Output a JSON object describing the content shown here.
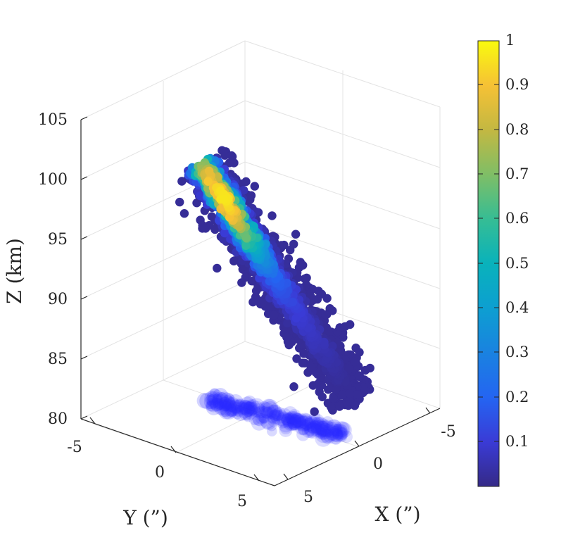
{
  "chart_data": {
    "type": "scatter",
    "title": "",
    "xlabel": "X (”)",
    "ylabel": "Y (”)",
    "zlabel": "Z (km)",
    "x_ticks": [
      "-5",
      "0",
      "5"
    ],
    "y_ticks": [
      "-5",
      "0",
      "5"
    ],
    "z_ticks": [
      "80",
      "85",
      "90",
      "95",
      "100",
      "105"
    ],
    "xlim": [
      -7,
      7
    ],
    "ylim": [
      -7,
      7
    ],
    "zlim": [
      80,
      105
    ],
    "grid": true,
    "colormap": "parula",
    "colorbar": {
      "ticks": [
        "0.1",
        "0.2",
        "0.3",
        "0.4",
        "0.5",
        "0.6",
        "0.7",
        "0.8",
        "0.9",
        "1"
      ],
      "range": [
        0,
        1
      ]
    },
    "point_cloud": {
      "z_range": [
        83,
        100.5
      ],
      "peak_density_z": 98,
      "peak_density_value": 1.0,
      "projection_on_floor": true,
      "floor_z": 80
    },
    "colors": {
      "low": "#3e26a8",
      "high": "#f9fb0e",
      "projection": "#2a2aff"
    }
  }
}
